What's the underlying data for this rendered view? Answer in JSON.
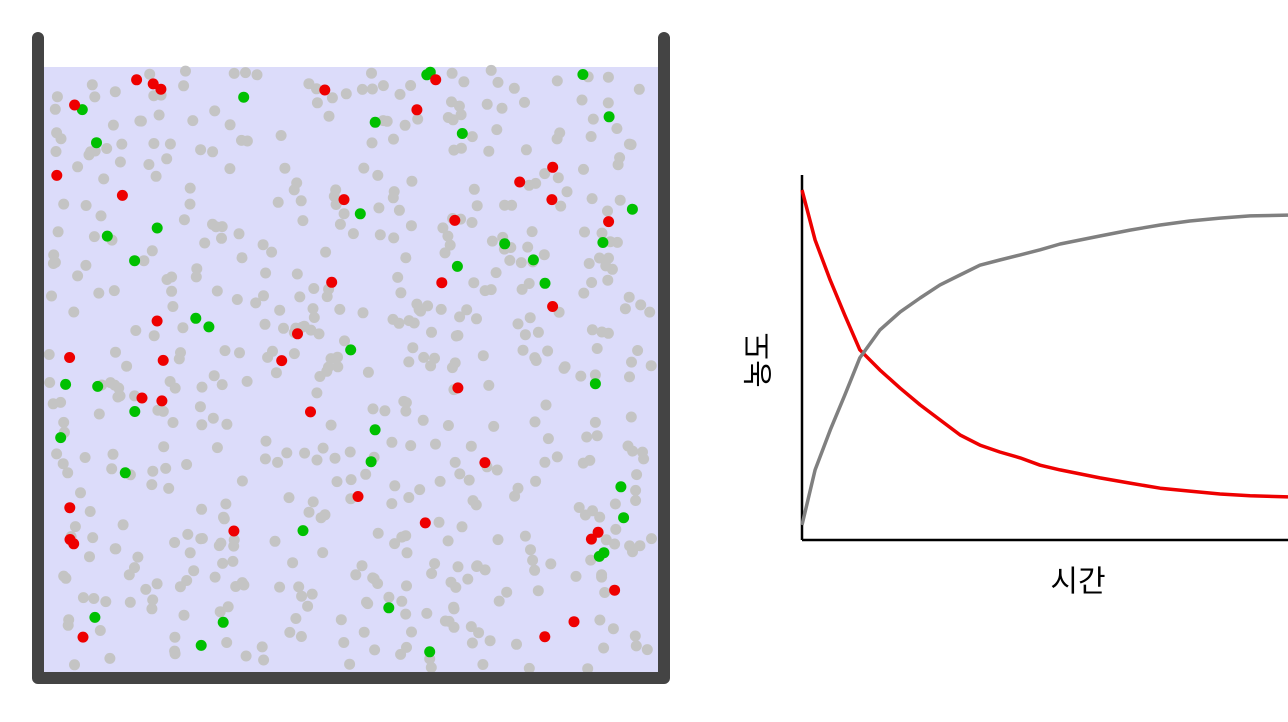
{
  "chart_data": {
    "type": "line",
    "x_label": "시간",
    "y_label": "농도",
    "x": [
      0,
      2.7,
      5.8,
      8.8,
      11.9,
      16,
      20.2,
      24.3,
      28.4,
      32.5,
      36.6,
      40.7,
      44.9,
      49,
      53.1,
      57.2,
      61.3,
      67.5,
      73.7,
      79.8,
      86,
      92.2,
      100
    ],
    "xlim": [
      0,
      100
    ],
    "ylim": [
      0,
      100
    ],
    "series": [
      {
        "color": "#ee0000",
        "values": [
          95.9,
          82.2,
          71.2,
          61.6,
          52.1,
          46.6,
          41.6,
          37.0,
          32.9,
          28.8,
          26.0,
          24.1,
          22.5,
          20.5,
          19.2,
          18.1,
          17.0,
          15.6,
          14.2,
          13.4,
          12.6,
          12.1,
          11.8
        ]
      },
      {
        "color": "#808080",
        "values": [
          4.1,
          19.2,
          30.1,
          39.7,
          49.9,
          57.5,
          62.5,
          66.3,
          69.9,
          72.6,
          75.3,
          76.7,
          78.1,
          79.5,
          81.1,
          82.2,
          83.3,
          84.9,
          86.3,
          87.4,
          88.2,
          88.8,
          89.0
        ]
      }
    ]
  }
}
